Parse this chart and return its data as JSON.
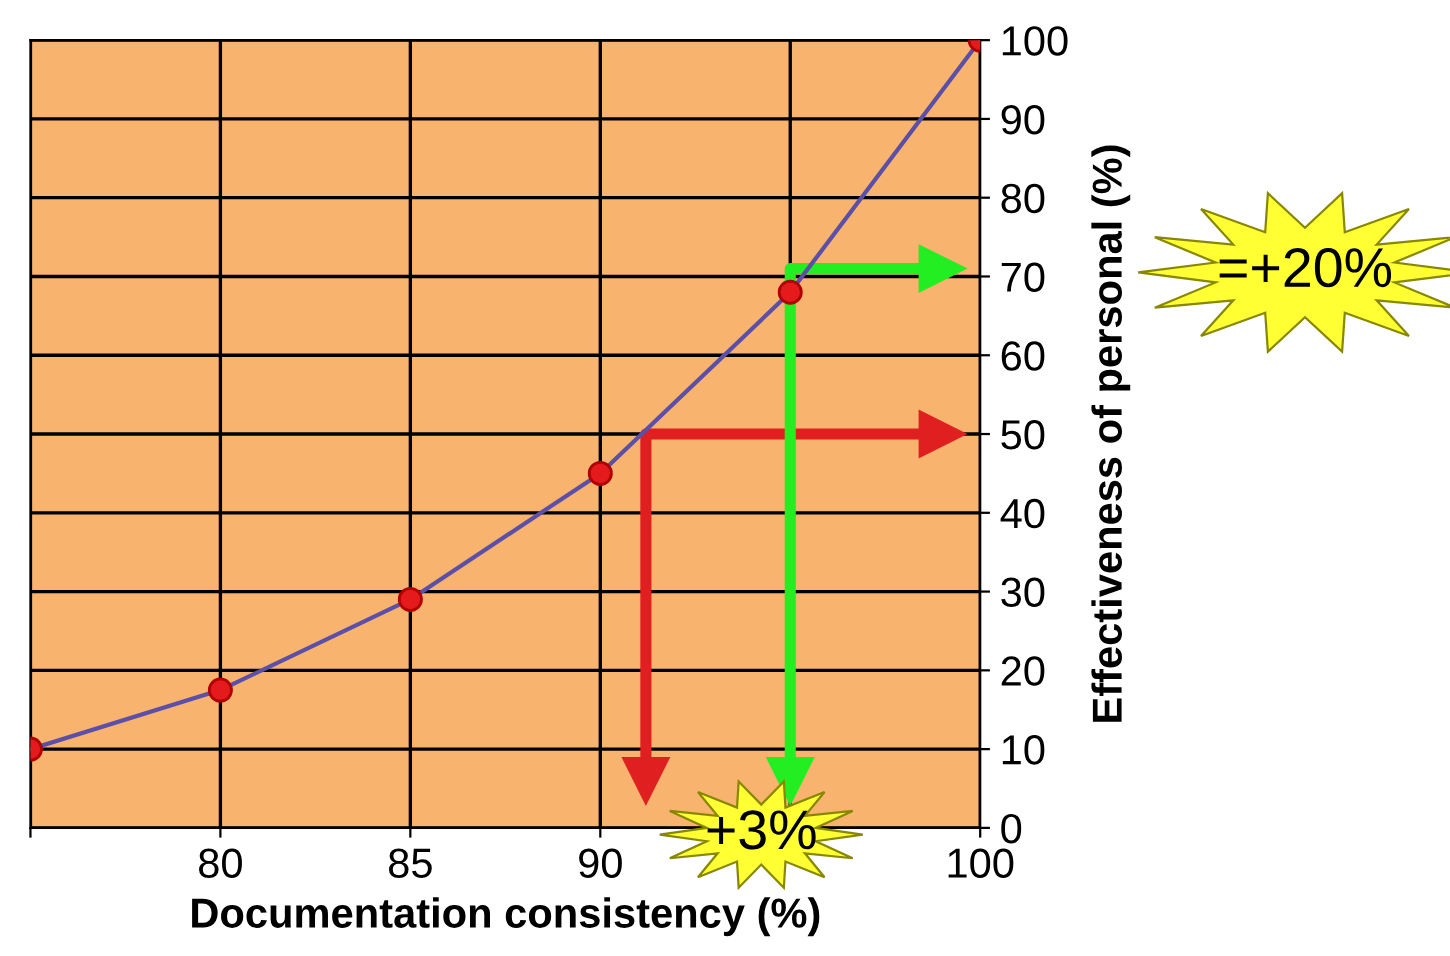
{
  "chart_data": {
    "type": "line",
    "xlabel": "Documentation consistency (%)",
    "ylabel": "Effectiveness of personal (%)",
    "xlim": [
      75,
      100
    ],
    "ylim": [
      0,
      100
    ],
    "xticks": [
      {
        "value": 75,
        "label": null
      },
      80,
      85,
      90,
      {
        "value": 95,
        "label": null
      },
      100
    ],
    "yticks": [
      0,
      10,
      20,
      30,
      40,
      50,
      60,
      70,
      80,
      90,
      100
    ],
    "grid": true,
    "marker": "circle",
    "line_style": "solid",
    "series": [
      {
        "color": "#5b4fa8",
        "x": [
          75,
          80,
          85,
          90,
          95,
          100
        ],
        "values": [
          10,
          17.5,
          29,
          45,
          68,
          100
        ]
      },
      {
        "type": "step",
        "color": "#e02020",
        "x": [
          91.2,
          91.2,
          99
        ],
        "values": [
          6,
          50,
          50
        ],
        "marker": "triangle"
      },
      {
        "type": "step",
        "color": "#22ee22",
        "x": [
          95,
          95,
          99
        ],
        "values": [
          6,
          71,
          71
        ],
        "marker": "triangle"
      }
    ],
    "annotations": [
      "+3%",
      "=+20%"
    ]
  }
}
